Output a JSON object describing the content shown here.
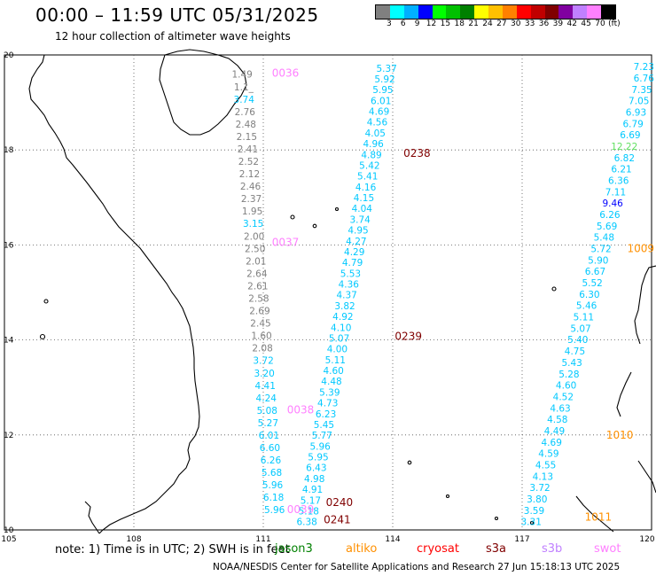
{
  "title": "00:00 – 11:59 UTC 05/31/2025",
  "subtitle": "12 hour collection of altimeter wave heights",
  "colorbar": {
    "swatches": [
      "#808080",
      "#00ffff",
      "#00b0ff",
      "#0000ff",
      "#00ff00",
      "#00c000",
      "#008000",
      "#ffff00",
      "#ffc000",
      "#ff8000",
      "#ff0000",
      "#c00000",
      "#800000",
      "#8000a0",
      "#c080ff",
      "#ff80ff",
      "#000000"
    ],
    "labels": [
      "3",
      "6",
      "9",
      "12",
      "15",
      "18",
      "21",
      "24",
      "27",
      "30",
      "33",
      "36",
      "39",
      "42",
      "45",
      "70",
      "(ft)"
    ]
  },
  "map": {
    "lon_labels": [
      "105",
      "108",
      "111",
      "114",
      "117",
      "120"
    ],
    "lat_labels": [
      "20",
      "18",
      "16",
      "14",
      "12",
      "10"
    ]
  },
  "chart_data": {
    "type": "scatter",
    "x_range_lon": [
      105,
      120
    ],
    "y_range_lat": [
      10,
      20
    ],
    "grid": true,
    "tracks": [
      {
        "start_lon": 110.75,
        "start_lat": 19.52,
        "end_lon": 111.5,
        "end_lat": 10.35,
        "values": [
          {
            "v": "1.49",
            "c": "#808080"
          },
          {
            "v": "1.1_",
            "c": "#808080"
          },
          {
            "v": "3.74",
            "c": "#00c8ff"
          },
          {
            "v": "2.76",
            "c": "#808080"
          },
          {
            "v": "2.48",
            "c": "#808080"
          },
          {
            "v": "2.15",
            "c": "#808080"
          },
          {
            "v": "2.41",
            "c": "#808080"
          },
          {
            "v": "2.52",
            "c": "#808080"
          },
          {
            "v": "2.12",
            "c": "#808080"
          },
          {
            "v": "2.46",
            "c": "#808080"
          },
          {
            "v": "2.37",
            "c": "#808080"
          },
          {
            "v": "1.95",
            "c": "#808080"
          },
          {
            "v": "3.15",
            "c": "#00c8ff"
          },
          {
            "v": "2.00",
            "c": "#808080"
          },
          {
            "v": "2.50",
            "c": "#808080"
          },
          {
            "v": "2.01",
            "c": "#808080"
          },
          {
            "v": "2.64",
            "c": "#808080"
          },
          {
            "v": "2.61",
            "c": "#808080"
          },
          {
            "v": "2.58",
            "c": "#808080"
          },
          {
            "v": "2.69",
            "c": "#808080"
          },
          {
            "v": "2.45",
            "c": "#808080"
          },
          {
            "v": "1.60",
            "c": "#808080"
          },
          {
            "v": "2.08",
            "c": "#808080"
          },
          {
            "v": "3.72",
            "c": "#00c8ff"
          },
          {
            "v": "3.20",
            "c": "#00c8ff"
          },
          {
            "v": "4.41",
            "c": "#00c8ff"
          },
          {
            "v": "4.24",
            "c": "#00c8ff"
          },
          {
            "v": "5.08",
            "c": "#00c8ff"
          },
          {
            "v": "5.27",
            "c": "#00c8ff"
          },
          {
            "v": "6.01",
            "c": "#00c8ff"
          },
          {
            "v": "6.60",
            "c": "#00c8ff"
          },
          {
            "v": "6.26",
            "c": "#00c8ff"
          },
          {
            "v": "5.68",
            "c": "#00c8ff"
          },
          {
            "v": "5.96",
            "c": "#00c8ff"
          },
          {
            "v": "6.18",
            "c": "#00c8ff"
          },
          {
            "v": "5.96",
            "c": "#00c8ff"
          }
        ]
      },
      {
        "start_lon": 114.1,
        "start_lat": 19.65,
        "end_lon": 112.25,
        "end_lat": 10.1,
        "values": [
          {
            "v": "5.37",
            "c": "#00c8ff"
          },
          {
            "v": "5.92",
            "c": "#00c8ff"
          },
          {
            "v": "5.95",
            "c": "#00c8ff"
          },
          {
            "v": "6.01",
            "c": "#00c8ff"
          },
          {
            "v": "4.69",
            "c": "#00c8ff"
          },
          {
            "v": "4.56",
            "c": "#00c8ff"
          },
          {
            "v": "4.05",
            "c": "#00c8ff"
          },
          {
            "v": "4.96",
            "c": "#00c8ff"
          },
          {
            "v": "4.89",
            "c": "#00c8ff"
          },
          {
            "v": "5.42",
            "c": "#00c8ff"
          },
          {
            "v": "5.41",
            "c": "#00c8ff"
          },
          {
            "v": "4.16",
            "c": "#00c8ff"
          },
          {
            "v": "4.15",
            "c": "#00c8ff"
          },
          {
            "v": "4.04",
            "c": "#00c8ff"
          },
          {
            "v": "3.74",
            "c": "#00c8ff"
          },
          {
            "v": "4.95",
            "c": "#00c8ff"
          },
          {
            "v": "4.27",
            "c": "#00c8ff"
          },
          {
            "v": "4.29",
            "c": "#00c8ff"
          },
          {
            "v": "4.79",
            "c": "#00c8ff"
          },
          {
            "v": "5.53",
            "c": "#00c8ff"
          },
          {
            "v": "4.36",
            "c": "#00c8ff"
          },
          {
            "v": "4.37",
            "c": "#00c8ff"
          },
          {
            "v": "3.82",
            "c": "#00c8ff"
          },
          {
            "v": "4.92",
            "c": "#00c8ff"
          },
          {
            "v": "4.10",
            "c": "#00c8ff"
          },
          {
            "v": "5.07",
            "c": "#00c8ff"
          },
          {
            "v": "4.00",
            "c": "#00c8ff"
          },
          {
            "v": "5.11",
            "c": "#00c8ff"
          },
          {
            "v": "4.60",
            "c": "#00c8ff"
          },
          {
            "v": "4.48",
            "c": "#00c8ff"
          },
          {
            "v": "5.39",
            "c": "#00c8ff"
          },
          {
            "v": "4.73",
            "c": "#00c8ff"
          },
          {
            "v": "6.23",
            "c": "#00c8ff"
          },
          {
            "v": "5.45",
            "c": "#00c8ff"
          },
          {
            "v": "5.77",
            "c": "#00c8ff"
          },
          {
            "v": "5.96",
            "c": "#00c8ff"
          },
          {
            "v": "5.95",
            "c": "#00c8ff"
          },
          {
            "v": "6.43",
            "c": "#00c8ff"
          },
          {
            "v": "4.98",
            "c": "#00c8ff"
          },
          {
            "v": "4.91",
            "c": "#00c8ff"
          },
          {
            "v": "5.17",
            "c": "#00c8ff"
          },
          {
            "v": "5.18",
            "c": "#00c8ff"
          },
          {
            "v": "6.38",
            "c": "#00c8ff"
          }
        ]
      },
      {
        "start_lon": 120.15,
        "start_lat": 19.68,
        "end_lon": 117.45,
        "end_lat": 10.1,
        "values": [
          {
            "v": "7.23",
            "c": "#00c8ff"
          },
          {
            "v": "6.76",
            "c": "#00c8ff"
          },
          {
            "v": "7.35",
            "c": "#00c8ff"
          },
          {
            "v": "7.05",
            "c": "#00c8ff"
          },
          {
            "v": "6.93",
            "c": "#00c8ff"
          },
          {
            "v": "6.79",
            "c": "#00c8ff"
          },
          {
            "v": "6.69",
            "c": "#00c8ff"
          },
          {
            "v": "12.22",
            "c": "#60e060"
          },
          {
            "v": "6.82",
            "c": "#00c8ff"
          },
          {
            "v": "6.21",
            "c": "#00c8ff"
          },
          {
            "v": "6.36",
            "c": "#00c8ff"
          },
          {
            "v": "7.11",
            "c": "#00c8ff"
          },
          {
            "v": "9.46",
            "c": "#0000ff"
          },
          {
            "v": "6.26",
            "c": "#00c8ff"
          },
          {
            "v": "5.69",
            "c": "#00c8ff"
          },
          {
            "v": "5.48",
            "c": "#00c8ff"
          },
          {
            "v": "5.72",
            "c": "#00c8ff"
          },
          {
            "v": "5.90",
            "c": "#00c8ff"
          },
          {
            "v": "6.67",
            "c": "#00c8ff"
          },
          {
            "v": "5.52",
            "c": "#00c8ff"
          },
          {
            "v": "6.30",
            "c": "#00c8ff"
          },
          {
            "v": "5.46",
            "c": "#00c8ff"
          },
          {
            "v": "5.11",
            "c": "#00c8ff"
          },
          {
            "v": "5.07",
            "c": "#00c8ff"
          },
          {
            "v": "5.40",
            "c": "#00c8ff"
          },
          {
            "v": "4.75",
            "c": "#00c8ff"
          },
          {
            "v": "5.43",
            "c": "#00c8ff"
          },
          {
            "v": "5.28",
            "c": "#00c8ff"
          },
          {
            "v": "4.60",
            "c": "#00c8ff"
          },
          {
            "v": "4.52",
            "c": "#00c8ff"
          },
          {
            "v": "4.63",
            "c": "#00c8ff"
          },
          {
            "v": "4.58",
            "c": "#00c8ff"
          },
          {
            "v": "4.49",
            "c": "#00c8ff"
          },
          {
            "v": "4.69",
            "c": "#00c8ff"
          },
          {
            "v": "4.59",
            "c": "#00c8ff"
          },
          {
            "v": "4.55",
            "c": "#00c8ff"
          },
          {
            "v": "4.13",
            "c": "#00c8ff"
          },
          {
            "v": "3.72",
            "c": "#00c8ff"
          },
          {
            "v": "3.80",
            "c": "#00c8ff"
          },
          {
            "v": "3.59",
            "c": "#00c8ff"
          },
          {
            "v": "3.31",
            "c": "#00c8ff"
          }
        ]
      }
    ],
    "time_tags": [
      {
        "t": "0036",
        "lon": 111.2,
        "lat": 19.54,
        "c": "#ff80ff"
      },
      {
        "t": "0037",
        "lon": 111.2,
        "lat": 15.98,
        "c": "#ff80ff"
      },
      {
        "t": "0038",
        "lon": 111.55,
        "lat": 12.45,
        "c": "#ff80ff"
      },
      {
        "t": "0039",
        "lon": 111.55,
        "lat": 10.35,
        "c": "#ff80ff"
      },
      {
        "t": "0238",
        "lon": 114.25,
        "lat": 17.85,
        "c": "#800000"
      },
      {
        "t": "0239",
        "lon": 114.05,
        "lat": 14.0,
        "c": "#800000"
      },
      {
        "t": "0240",
        "lon": 112.45,
        "lat": 10.5,
        "c": "#800000"
      },
      {
        "t": "0241",
        "lon": 112.4,
        "lat": 10.14,
        "c": "#800000"
      },
      {
        "t": "1009",
        "lon": 120.25,
        "lat": 15.85,
        "c": "#ff9000"
      },
      {
        "t": "1010",
        "lon": 118.95,
        "lat": 11.92,
        "c": "#ff9000"
      },
      {
        "t": "1011",
        "lon": 118.45,
        "lat": 10.2,
        "c": "#ff9000"
      }
    ]
  },
  "footer": {
    "note": "note: 1) Time is in UTC; 2) SWH is in feet",
    "missions": [
      {
        "name": "jason3",
        "color": "#008000"
      },
      {
        "name": "altiko",
        "color": "#ff9000"
      },
      {
        "name": "cryosat",
        "color": "#ff0000"
      },
      {
        "name": "s3a",
        "color": "#800000"
      },
      {
        "name": "s3b",
        "color": "#c080ff"
      },
      {
        "name": "swot",
        "color": "#ff80ff"
      }
    ],
    "credit": "NOAA/NESDIS Center for Satellite Applications and Research    27 Jun 15:18:13 UTC 2025"
  }
}
